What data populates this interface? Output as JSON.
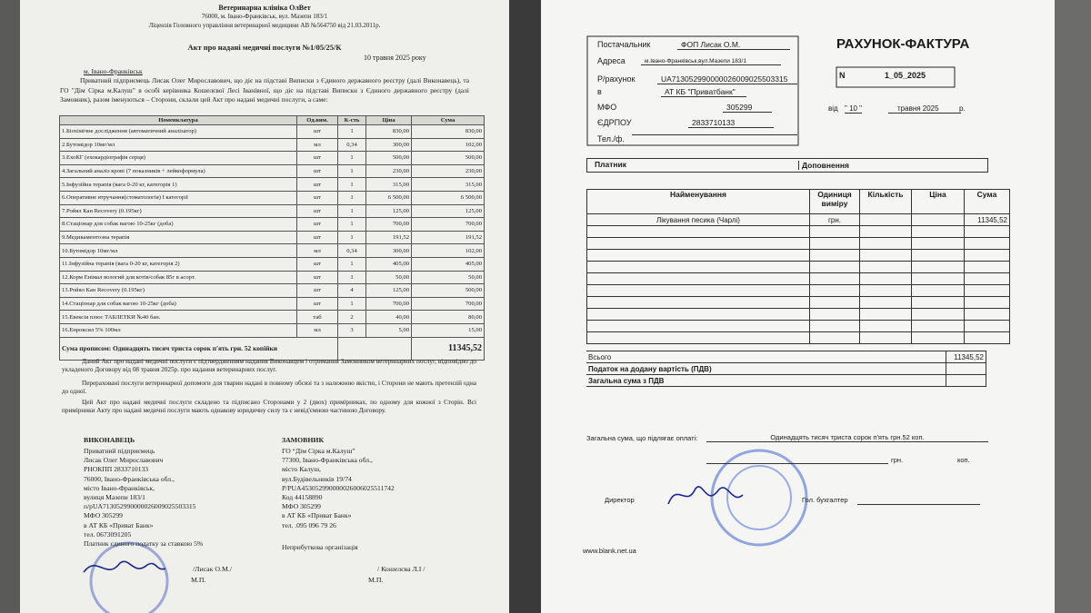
{
  "left_document": {
    "header": [
      "Ветеринарна клініка ОлВет",
      "76000, м. Івано-Франківськ, вул. Мазепи 183/1",
      "Ліцензія Головного управління ветеринарної медицини АВ №564750 від 21.03.2011р."
    ],
    "title": "Акт про надані медичні послуги №1/05/25/К",
    "date": "10 травня 2025 року",
    "city": "м. Івано-Франківськ",
    "intro": "Приватний підприємець Лисак Олег Мирославович, що діє на підставі Виписки з Єдиного державного реєстру (далі Виконавець), та ГО \"Дім Сірка м.Калуш\" в особі керівника Кошелєвої Лесі Іванівної, що діє на підставі Виписки з Єдиного державного реєстру (далі Замовник), разом іменуються – Сторони, склали цей Акт про надані медичні послуги, а саме:",
    "table": {
      "headers": [
        "Номенклатура",
        "Од.вим.",
        "К-сть",
        "Ціна",
        "Сума"
      ],
      "rows": [
        [
          "1.Біохімічне дослідження (автоматичний аналізатор)",
          "шт",
          "1",
          "830,00",
          "830,00"
        ],
        [
          "2.Бутомідор 10мг/мл",
          "мл",
          "0,34",
          "300,00",
          "102,00"
        ],
        [
          "3.ЕхоКГ (ехокардіографія серця)",
          "шт",
          "1",
          "500,00",
          "500,00"
        ],
        [
          "4.Загальний аналіз крові (7 показників + лейкоформула)",
          "шт",
          "1",
          "230,00",
          "230,00"
        ],
        [
          "5.Інфузійна терапія (вага 0-20 кг, категорія 1)",
          "шт",
          "1",
          "315,00",
          "315,00"
        ],
        [
          "6.Оперативне втручання(стоматологія) І категорії",
          "шт",
          "1",
          "6 500,00",
          "6 500,00"
        ],
        [
          "7.Ройял Кан Recovery (0.195кг)",
          "шт",
          "1",
          "125,00",
          "125,00"
        ],
        [
          "8.Стаціонар для собак вагою 10-25кг (доба)",
          "шт",
          "1",
          "700,00",
          "700,00"
        ],
        [
          "9.Медикаментозна терапія",
          "шт",
          "1",
          "191,52",
          "191,52"
        ],
        [
          "10.Бутомідор 10мг/мл",
          "мл",
          "0,34",
          "300,00",
          "102,00"
        ],
        [
          "11.Інфузійна терапія (вага 0-20 кг, категорія 2)",
          "шт",
          "1",
          "405,00",
          "405,00"
        ],
        [
          "12.Корм Енімал вологий для котів/собак 85г в асорт.",
          "шт",
          "1",
          "50,00",
          "50,00"
        ],
        [
          "13.Ройял Кан Recovery (0.195кг)",
          "шт",
          "4",
          "125,00",
          "500,00"
        ],
        [
          "14.Стаціонар для собак вагою 10-25кг (доба)",
          "шт",
          "1",
          "700,00",
          "700,00"
        ],
        [
          "15.Евексія плюс ТАБЛЕТКИ №40 бан.",
          "таб",
          "2",
          "40,00",
          "80,00"
        ],
        [
          "16.Енроксил 5% 100мл",
          "мл",
          "3",
          "5,00",
          "15,00"
        ]
      ]
    },
    "total": {
      "label": "Сума прописом: Одинадцять тисяч триста сорок п'ять грн. 52 копійки",
      "amount": "11345,52"
    },
    "paragraphs": [
      "Даний Акт про надані медичні послуги є підтвердженням надання Виконавцем і отримання Замовником ветеринарних послуг, відповідно до укладеного Договору від 08 травня 2025р. про надання ветеринарних послуг.",
      "Перераховані послуги ветеринарної допомоги для тварин надані в повному обсязі та з належною якістю, і Сторони не мають претензій одна до одної.",
      "Цей Акт про надані медичні послуги складено та підписано Сторонами у 2 (двох) примірниках, по одному для кожної з Сторін. Всі примірники Акту про надані медичні послуги мають однакову юридичну силу та є невід'ємною частиною Договору."
    ],
    "executor": {
      "title": "ВИКОНАВЕЦЬ",
      "lines": [
        "Приватний підприємець",
        "Лисак Олег Мирославович",
        "РНОКПП 2833710133",
        "76000, Івано-Франківська обл.,",
        "місто Івано-Франківськ,",
        "вулиця Мазепи 183/1",
        "п/рUA713052990000026009025503315",
        "МФО 305299",
        "в АТ КБ «Приват Банк»",
        "тел. 0673091205",
        "Платник єдиного податку за ставкою 5%"
      ],
      "signature": "/Лисак О.М./",
      "stamp": "М.П."
    },
    "customer": {
      "title": "ЗАМОВНИК",
      "lines": [
        "ГО “Дім Сірка м.Калуш”",
        "77300, Івано-Франківська обл.,",
        "місто Калуш,",
        "вул.Будівельників 19/74",
        "Р/РUA453052990000026006025511742",
        "Код 44158890",
        "МФО 305299",
        "в АТ КБ «Приват Банк»",
        "тел. .095 096 79 26",
        "Неприбуткова організація"
      ],
      "signature": "/ Кошелєва Л.І /",
      "stamp": "М.П."
    }
  },
  "right_document": {
    "supplier": [
      [
        "Постачальник",
        "ФОП Лисак О.М."
      ],
      [
        "Адреса",
        "м.Івано-Франківськ,вул.Мазепи 183/1"
      ],
      [
        "Р/рахунок",
        "UA713052990000026009025503315"
      ],
      [
        "в",
        "АТ КБ \"Приватбанк\""
      ],
      [
        "МФО",
        "305299"
      ],
      [
        "ЄДРПОУ",
        "2833710133"
      ],
      [
        "Тел./ф.",
        ""
      ]
    ],
    "title": "РАХУНОК-ФАКТУРА",
    "number_label": "N",
    "number": "1_05_2025",
    "date_label": "від",
    "day": "\"  10  \"",
    "month_year": "травня 2025",
    "year_suffix": "р.",
    "payer": "Платник",
    "addition": "Доповнення",
    "table": {
      "headers": [
        "Найменування",
        "Одиниця виміру",
        "Кількість",
        "Ціна",
        "Сума"
      ],
      "rows": [
        [
          "Лікування песика (Чарлі)",
          "грн.",
          "",
          "",
          "11345,52"
        ]
      ]
    },
    "totals": [
      [
        "Всього",
        "11345,52"
      ],
      [
        "Податок на додану вартість (ПДВ)",
        ""
      ],
      [
        "Загальна сума з ПДВ",
        ""
      ]
    ],
    "payable_label": "Загальна сума, що підлягає оплаті:",
    "payable_words": "Одинадцять тисяч триста сорок п'ять грн.52 коп.",
    "currency": "грн.",
    "cents": "коп.",
    "director": "Директор",
    "accountant": "Гол. бухгалтер",
    "website": "www.blank.net.ua"
  }
}
